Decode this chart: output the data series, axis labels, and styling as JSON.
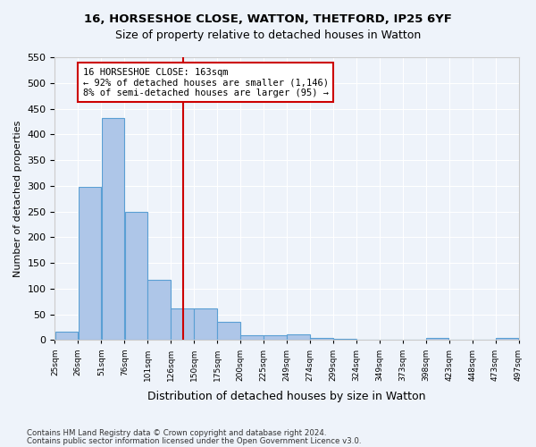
{
  "title": "16, HORSESHOE CLOSE, WATTON, THETFORD, IP25 6YF",
  "subtitle": "Size of property relative to detached houses in Watton",
  "xlabel": "Distribution of detached houses by size in Watton",
  "ylabel": "Number of detached properties",
  "footer_line1": "Contains HM Land Registry data © Crown copyright and database right 2024.",
  "footer_line2": "Contains public sector information licensed under the Open Government Licence v3.0.",
  "bin_labels": [
    "25sqm",
    "26sqm",
    "51sqm",
    "76sqm",
    "101sqm",
    "126sqm",
    "150sqm",
    "175sqm",
    "200sqm",
    "225sqm",
    "249sqm",
    "274sqm",
    "299sqm",
    "324sqm",
    "349sqm",
    "373sqm",
    "398sqm",
    "423sqm",
    "448sqm",
    "473sqm",
    "497sqm"
  ],
  "bin_edges": [
    25,
    50,
    75,
    100,
    125,
    150,
    175,
    200,
    225,
    250,
    275,
    300,
    325,
    350,
    375,
    400,
    425,
    450,
    475,
    500,
    525
  ],
  "bar_heights": [
    17,
    298,
    432,
    250,
    118,
    62,
    62,
    35,
    9,
    9,
    11,
    4,
    3,
    0,
    0,
    0,
    5,
    0,
    0,
    5
  ],
  "bar_color": "#aec6e8",
  "bar_edge_color": "#5a9fd4",
  "property_size": 163,
  "annotation_title": "16 HORSESHOE CLOSE: 163sqm",
  "annotation_line1": "← 92% of detached houses are smaller (1,146)",
  "annotation_line2": "8% of semi-detached houses are larger (95) →",
  "vline_color": "#cc0000",
  "annotation_box_color": "#cc0000",
  "ylim": [
    0,
    550
  ],
  "yticks": [
    0,
    50,
    100,
    150,
    200,
    250,
    300,
    350,
    400,
    450,
    500,
    550
  ],
  "bg_color": "#eef3fa",
  "plot_bg_color": "#eef3fa"
}
